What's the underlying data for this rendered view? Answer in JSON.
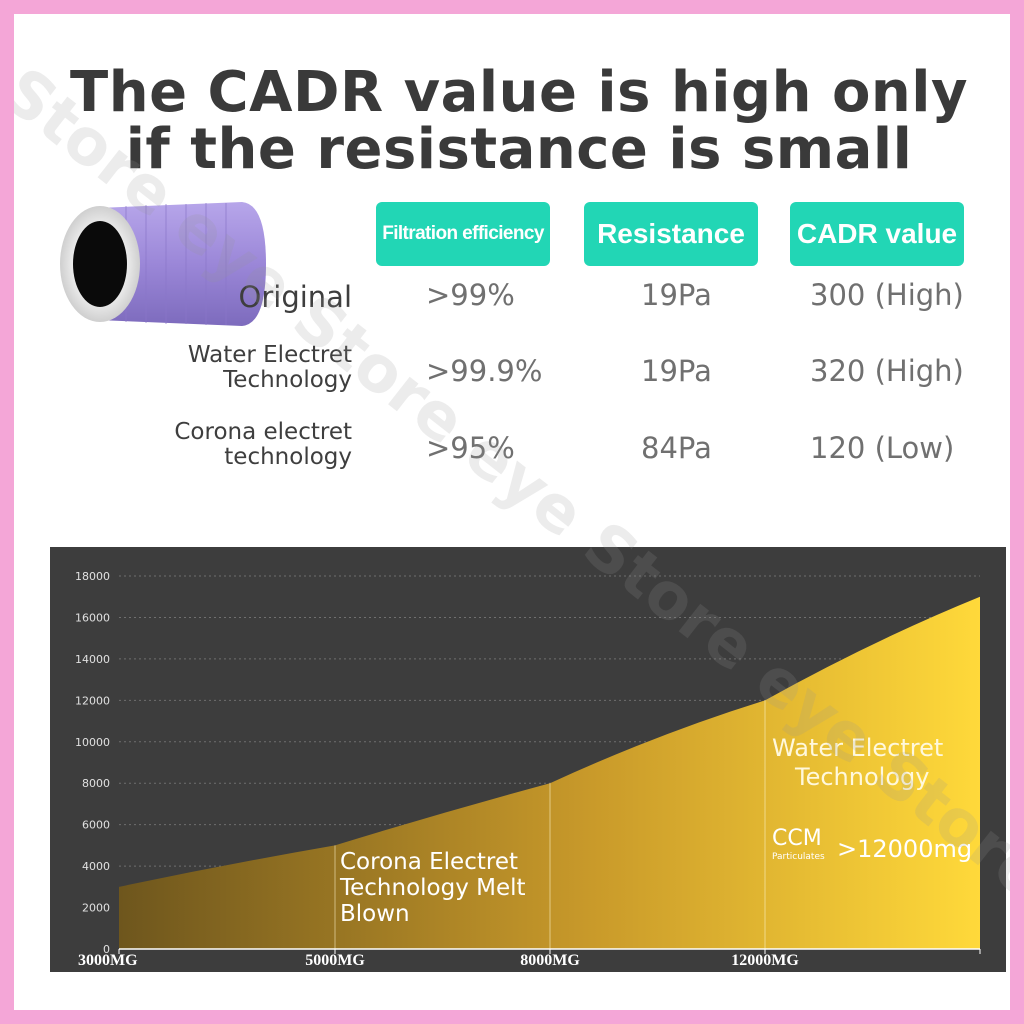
{
  "headline": {
    "line1": "The CADR value is high only",
    "line2": "if the resistance is small"
  },
  "watermark": "Store eye Store eye Store eye Store",
  "table": {
    "headers": [
      "Filtration efficiency",
      "Resistance",
      "CADR value"
    ],
    "rows": [
      {
        "label": [
          "Original"
        ],
        "efficiency": ">99%",
        "resistance": "19Pa",
        "cadr": "300 (High)"
      },
      {
        "label": [
          "Water Electret",
          "Technology"
        ],
        "efficiency": ">99.9%",
        "resistance": "19Pa",
        "cadr": "320 (High)"
      },
      {
        "label": [
          "Corona electret",
          "technology"
        ],
        "efficiency": ">95%",
        "resistance": "84Pa",
        "cadr": "120 (Low)"
      }
    ]
  },
  "colors": {
    "accent_teal": "#22d6b5",
    "chart_background": "#3d3d3d",
    "area_light": "#ffd93a",
    "area_dark": "#6e561d",
    "filter_purple": "#9b87d8"
  },
  "chart_data": {
    "type": "area",
    "x_tick_labels": [
      "3000MG",
      "5000MG",
      "8000MG",
      "12000MG"
    ],
    "y_ticks": [
      0,
      2000,
      4000,
      6000,
      8000,
      10000,
      12000,
      14000,
      16000,
      18000
    ],
    "ylim": [
      0,
      18000
    ],
    "grid": true,
    "points": [
      {
        "x": "3000MG",
        "y": 3000
      },
      {
        "x": "5000MG",
        "y": 5000
      },
      {
        "x": "8000MG",
        "y": 8000
      },
      {
        "x": "12000MG",
        "y": 12000
      },
      {
        "x": "",
        "y": 17000
      }
    ],
    "annotations": {
      "corona": [
        "Corona Electret",
        "Technology Melt",
        "Blown"
      ],
      "water": [
        "Water Electret",
        "Technology"
      ],
      "ccm_main": "CCM",
      "ccm_sub": "Particulates",
      "ccm_value": ">12000mg"
    }
  }
}
